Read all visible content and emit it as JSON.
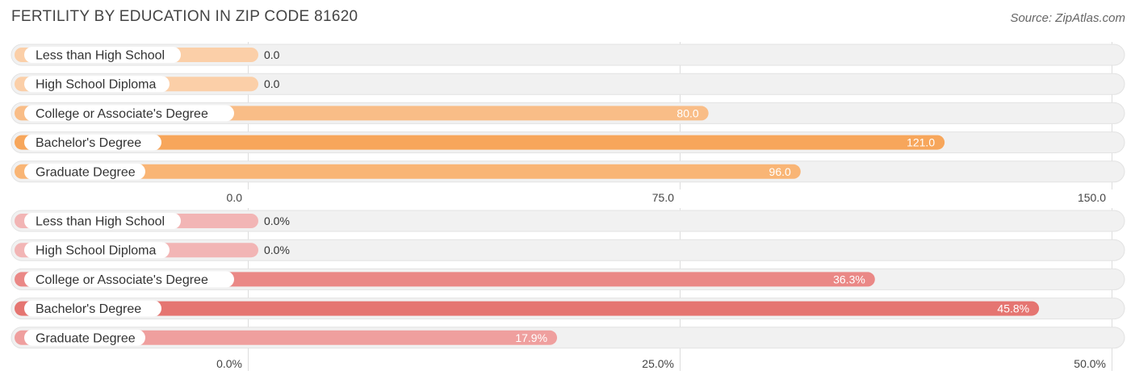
{
  "title": "FERTILITY BY EDUCATION IN ZIP CODE 81620",
  "source": "Source: ZipAtlas.com",
  "chart_data": [
    {
      "type": "bar",
      "orientation": "horizontal",
      "categories": [
        "Less than High School",
        "High School Diploma",
        "College or Associate's Degree",
        "Bachelor's Degree",
        "Graduate Degree"
      ],
      "values": [
        0.0,
        0.0,
        80.0,
        121.0,
        96.0
      ],
      "value_labels": [
        "0.0",
        "0.0",
        "80.0",
        "121.0",
        "96.0"
      ],
      "xlim": [
        0,
        150
      ],
      "ticks": [
        0,
        75,
        150
      ],
      "tick_labels": [
        "0.0",
        "75.0",
        "150.0"
      ],
      "colors": [
        "#fbcfa8",
        "#fbcfa8",
        "#f9bd87",
        "#f7a65b",
        "#f9b575"
      ],
      "grid": true
    },
    {
      "type": "bar",
      "orientation": "horizontal",
      "categories": [
        "Less than High School",
        "High School Diploma",
        "College or Associate's Degree",
        "Bachelor's Degree",
        "Graduate Degree"
      ],
      "values": [
        0.0,
        0.0,
        36.3,
        45.8,
        17.9
      ],
      "value_labels": [
        "0.0%",
        "0.0%",
        "36.3%",
        "45.8%",
        "17.9%"
      ],
      "xlim": [
        0,
        50
      ],
      "ticks": [
        0,
        25,
        50
      ],
      "tick_labels": [
        "0.0%",
        "25.0%",
        "50.0%"
      ],
      "colors": [
        "#f2b5b5",
        "#f2b5b5",
        "#ea8886",
        "#e57571",
        "#ef9f9e"
      ],
      "grid": true
    }
  ]
}
